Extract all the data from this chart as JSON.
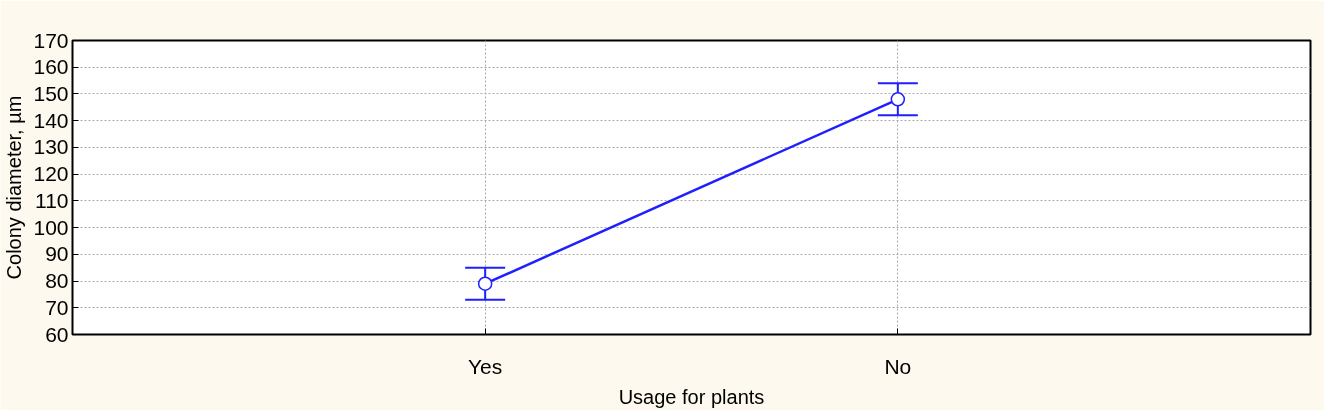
{
  "chart_data": {
    "type": "line",
    "xlabel": "Usage for plants",
    "ylabel": "Colony diameter, µm",
    "categories": [
      "Yes",
      "No"
    ],
    "series": [
      {
        "color": "#1f1fff",
        "values": [
          79,
          148
        ],
        "errors": [
          [
            73,
            85
          ],
          [
            142,
            154
          ]
        ]
      }
    ],
    "ylim": [
      60,
      170
    ],
    "yticks": [
      60,
      70,
      80,
      90,
      100,
      110,
      120,
      130,
      140,
      150,
      160,
      170
    ],
    "grid": true,
    "marker": "circle",
    "line_style": "solid"
  }
}
